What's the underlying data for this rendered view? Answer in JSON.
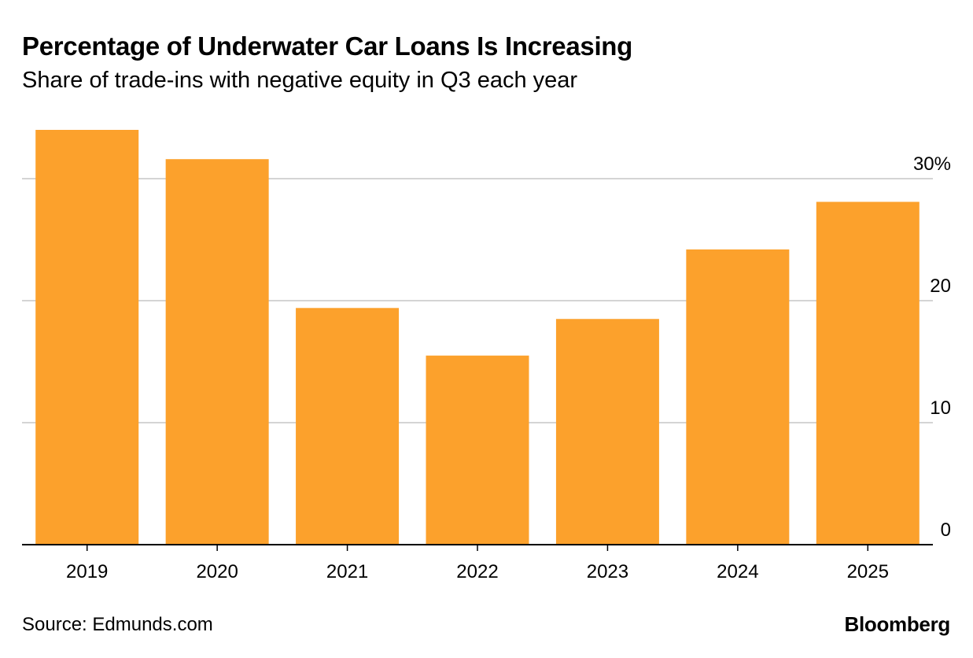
{
  "chart_data": {
    "type": "bar",
    "title": "Percentage of Underwater Car Loans Is Increasing",
    "subtitle": "Share of trade-ins with negative equity in Q3 each year",
    "categories": [
      "2019",
      "2020",
      "2021",
      "2022",
      "2023",
      "2024",
      "2025"
    ],
    "values": [
      34.0,
      31.6,
      19.4,
      15.5,
      18.5,
      24.2,
      28.1
    ],
    "ylim": [
      0,
      34
    ],
    "yticks": [
      0,
      10,
      20,
      30
    ],
    "ytick_labels": [
      "0",
      "10",
      "20",
      "30%"
    ],
    "y_axis_side": "right",
    "xlabel": "",
    "ylabel": "",
    "grid": true,
    "bar_color": "#fca12c",
    "grid_color": "#d4d4d4",
    "axis_color": "#000000"
  },
  "footer": {
    "source": "Source: Edmunds.com",
    "brand": "Bloomberg"
  }
}
